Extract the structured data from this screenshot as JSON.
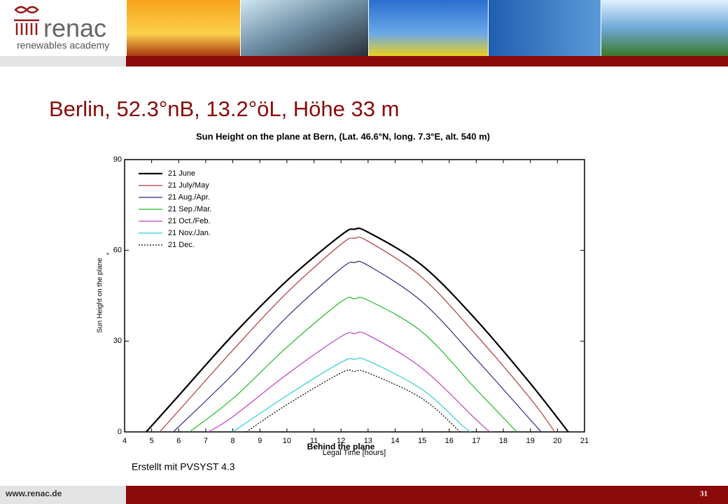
{
  "header": {
    "logo_name": "renac",
    "logo_subtitle": "renewables academy"
  },
  "slide_title": "Berlin, 52.3°nB, 13.2°öL, Höhe 33 m",
  "caption": "Erstellt mit PVSYST 4.3",
  "footer": {
    "url": "www.renac.de",
    "page": "31"
  },
  "chart_data": {
    "type": "line",
    "title": "Sun Height on the plane  at  Bern, (Lat. 46.6°N, long. 7.3°E, alt. 540 m)",
    "ylabel": "Sun Height on the plane",
    "ylabel_unit": "°",
    "xlabel": "Legal Time [hours]",
    "annotation": "Behind the plane",
    "xlim": [
      4,
      21
    ],
    "ylim": [
      0,
      90
    ],
    "xticks": [
      4,
      5,
      6,
      7,
      8,
      9,
      10,
      11,
      12,
      13,
      14,
      15,
      16,
      17,
      18,
      19,
      20,
      21
    ],
    "yticks": [
      0,
      30,
      60,
      90
    ],
    "legend": "top-left",
    "series": [
      {
        "name": "21 June",
        "color": "#000000",
        "width": 2.2,
        "x": [
          4.8,
          6,
          8,
          10,
          12,
          12.5,
          13,
          15,
          17,
          19,
          20.4
        ],
        "values": [
          0,
          12,
          32,
          50,
          65,
          67,
          66,
          55,
          37,
          16,
          0
        ]
      },
      {
        "name": "21 July/May",
        "color": "#b03a3a",
        "x": [
          5.3,
          6,
          8,
          10,
          12,
          12.5,
          13,
          15,
          17,
          19,
          19.9
        ],
        "values": [
          0,
          7,
          27,
          46,
          62,
          64,
          63,
          51,
          32,
          11,
          0
        ]
      },
      {
        "name": "21 Aug./Apr.",
        "color": "#2a2a80",
        "x": [
          5.8,
          8,
          10,
          12,
          12.5,
          13,
          15,
          17,
          19,
          19.4
        ],
        "values": [
          0,
          19,
          38,
          54,
          56,
          55,
          43,
          24,
          4,
          0
        ]
      },
      {
        "name": "21 Sep./Mar.",
        "color": "#22bb22",
        "x": [
          6.4,
          8,
          10,
          12,
          12.5,
          13,
          15,
          17,
          18.5
        ],
        "values": [
          0,
          11,
          28,
          43,
          44,
          43.5,
          33,
          14,
          0
        ]
      },
      {
        "name": "21 Oct./Feb.",
        "color": "#c040c0",
        "x": [
          7.1,
          8,
          10,
          12,
          12.5,
          13,
          15,
          17,
          17.5
        ],
        "values": [
          0,
          5,
          19,
          31.5,
          32.5,
          32,
          21,
          4,
          0
        ]
      },
      {
        "name": "21 Nov./Jan.",
        "color": "#30d0d0",
        "x": [
          8.0,
          10,
          12,
          12.5,
          13,
          15,
          16.5,
          16.8
        ],
        "values": [
          0,
          12,
          23,
          24,
          23.5,
          14,
          2,
          0
        ]
      },
      {
        "name": "21 Dec.",
        "color": "#000000",
        "dash": "2,2",
        "x": [
          8.5,
          10,
          12,
          12.5,
          13,
          15,
          16.4
        ],
        "values": [
          0,
          9,
          19.5,
          20,
          19.5,
          11,
          0
        ]
      }
    ]
  }
}
